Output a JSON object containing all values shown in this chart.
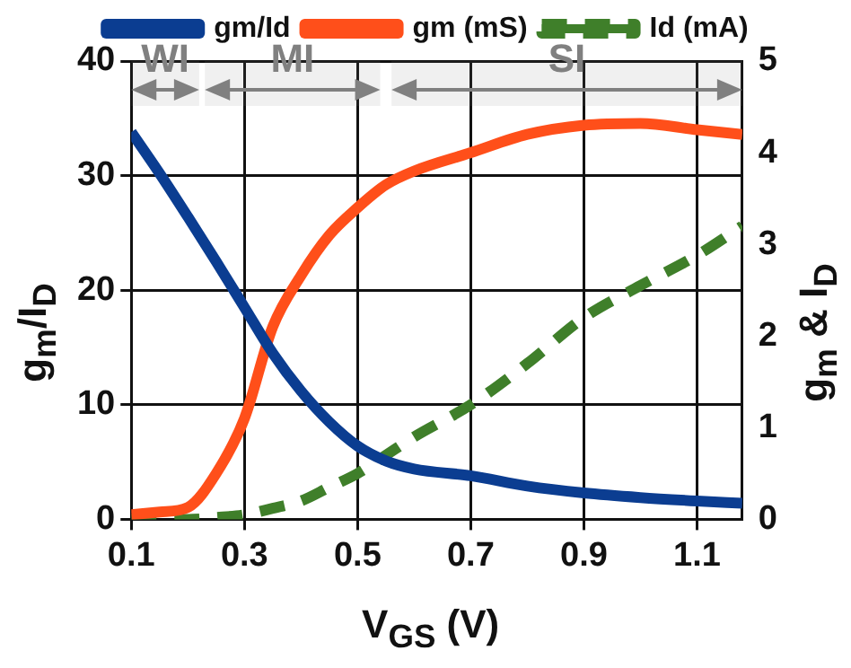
{
  "chart_data": {
    "type": "line",
    "xlabel": "V$_{GS}$ (V)",
    "ylabel": "g$_{m}$/I$_{D}$",
    "y2label": "g$_{m}$ & I$_{D}$",
    "xlim": [
      0.1,
      1.18
    ],
    "xticks": [
      0.1,
      0.3,
      0.5,
      0.7,
      0.9,
      1.1
    ],
    "ylim": [
      0,
      40
    ],
    "yticks": [
      0,
      10,
      20,
      30,
      40
    ],
    "y2lim": [
      0,
      5
    ],
    "y2ticks": [
      0,
      1,
      2,
      3,
      4,
      5
    ],
    "grid": true,
    "legend": "top",
    "marker": "none",
    "x": [
      0.1,
      0.15,
      0.2,
      0.25,
      0.3,
      0.35,
      0.4,
      0.45,
      0.5,
      0.55,
      0.6,
      0.7,
      0.8,
      0.9,
      1.0,
      1.1,
      1.18
    ],
    "series": [
      {
        "name": "gm/Id",
        "color": "#0b3d91",
        "line_style": "solid",
        "values": [
          33.8,
          30.2,
          26.4,
          22.5,
          18.5,
          14.5,
          11.2,
          8.5,
          6.4,
          5.1,
          4.4,
          3.8,
          2.9,
          2.3,
          1.9,
          1.6,
          1.4
        ]
      },
      {
        "name": "gm (mS)",
        "color": "#ff4f1a",
        "axis": "y2",
        "line_style": "solid",
        "values": [
          0.05,
          0.08,
          0.13,
          0.5,
          1.1,
          2.1,
          2.66,
          3.1,
          3.4,
          3.65,
          3.8,
          4.0,
          4.2,
          4.3,
          4.32,
          4.25,
          4.2
        ]
      },
      {
        "name": "Id (mA)",
        "color": "#3f7f2a",
        "axis": "y2",
        "line_style": "dashed",
        "values": [
          0,
          0,
          0,
          0.02,
          0.05,
          0.12,
          0.2,
          0.35,
          0.5,
          0.7,
          0.9,
          1.25,
          1.7,
          2.2,
          2.55,
          2.88,
          3.2
        ]
      }
    ],
    "bands": [
      {
        "axis": "x",
        "from": 0.1,
        "to": 0.22,
        "label": "WI",
        "color": "#808080"
      },
      {
        "axis": "x",
        "from": 0.23,
        "to": 0.54,
        "label": "MI",
        "color": "#808080"
      },
      {
        "axis": "x",
        "from": 0.56,
        "to": 1.18,
        "label": "SI",
        "color": "#808080"
      }
    ]
  }
}
